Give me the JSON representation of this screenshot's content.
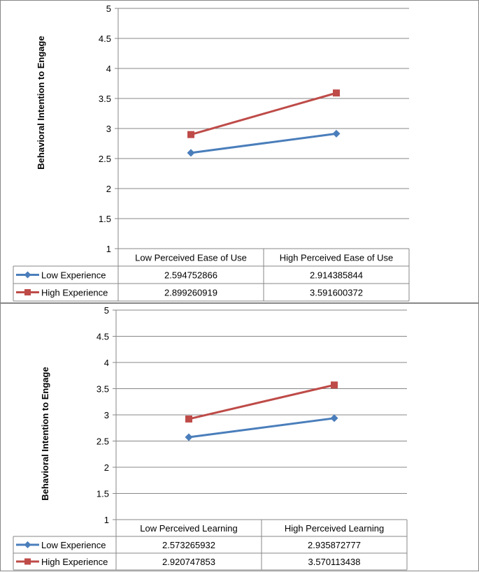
{
  "chart_data": [
    {
      "type": "line",
      "title": "",
      "ylabel": "Behavioral Intention to Engage",
      "xlabel": "",
      "ylim": [
        1,
        5
      ],
      "yticks": [
        "1",
        "1.5",
        "2",
        "2.5",
        "3",
        "3.5",
        "4",
        "4.5",
        "5"
      ],
      "grid": true,
      "legend": "data table",
      "categories": [
        "Low Perceived Ease of Use",
        "High Perceived Ease of Use"
      ],
      "series": [
        {
          "name": "Low Experience",
          "color": "#4a7ebb",
          "marker": "diamond",
          "values": [
            2.594752866,
            2.914385844
          ],
          "labels": [
            "2.594752866",
            "2.914385844"
          ]
        },
        {
          "name": "High Experience",
          "color": "#be4b48",
          "marker": "square",
          "values": [
            2.899260919,
            3.591600372
          ],
          "labels": [
            "2.899260919",
            "3.591600372"
          ]
        }
      ]
    },
    {
      "type": "line",
      "title": "",
      "ylabel": "Behavioral Intention to Engage",
      "xlabel": "",
      "ylim": [
        1,
        5
      ],
      "yticks": [
        "1",
        "1.5",
        "2",
        "2.5",
        "3",
        "3.5",
        "4",
        "4.5",
        "5"
      ],
      "grid": true,
      "legend": "data table",
      "categories": [
        "Low Perceived Learning",
        "High Perceived Learning"
      ],
      "series": [
        {
          "name": "Low Experience",
          "color": "#4a7ebb",
          "marker": "diamond",
          "values": [
            2.573265932,
            2.935872777
          ],
          "labels": [
            "2.573265932",
            "2.935872777"
          ]
        },
        {
          "name": "High Experience",
          "color": "#be4b48",
          "marker": "square",
          "values": [
            2.920747853,
            3.570113438
          ],
          "labels": [
            "2.920747853",
            "3.570113438"
          ]
        }
      ]
    }
  ]
}
